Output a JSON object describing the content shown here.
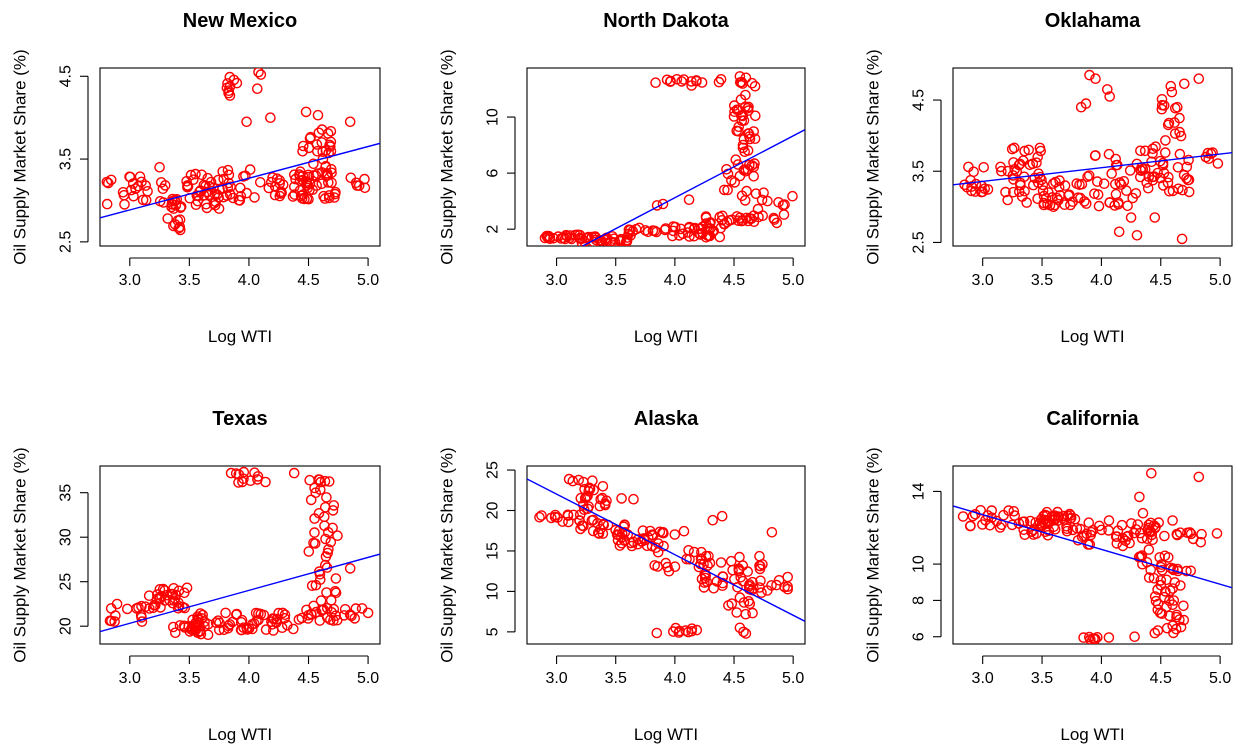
{
  "colors": {
    "points": "#ff0000",
    "fit_line": "#0000ff",
    "axes": "#000000"
  },
  "chart_data": [
    {
      "type": "scatter",
      "title": "New Mexico",
      "xlabel": "Log WTI",
      "ylabel": "Oil Supply Market Share (%)",
      "xlim": [
        2.75,
        5.1
      ],
      "ylim": [
        2.45,
        4.6
      ],
      "xticks": [
        3.0,
        3.5,
        4.0,
        4.5,
        5.0
      ],
      "xtick_labels": [
        "3.0",
        "3.5",
        "4.0",
        "4.5",
        "5.0"
      ],
      "yticks": [
        2.5,
        3.5,
        4.5
      ],
      "ytick_labels": [
        "2.5",
        "3.5",
        "4.5"
      ],
      "fit_line": [
        [
          2.75,
          2.79
        ],
        [
          5.1,
          3.69
        ]
      ],
      "clusters": [
        {
          "x": [
            2.8,
            3.3
          ],
          "y": [
            2.95,
            3.3
          ],
          "n": 25
        },
        {
          "x": [
            3.3,
            3.45
          ],
          "y": [
            2.6,
            3.05
          ],
          "n": 20
        },
        {
          "x": [
            3.45,
            3.75
          ],
          "y": [
            2.9,
            3.35
          ],
          "n": 35
        },
        {
          "x": [
            3.75,
            4.05
          ],
          "y": [
            3.0,
            3.4
          ],
          "n": 22
        },
        {
          "x": [
            3.8,
            3.9
          ],
          "y": [
            4.2,
            4.5
          ],
          "n": 9
        },
        {
          "x": [
            4.05,
            4.3
          ],
          "y": [
            3.05,
            3.35
          ],
          "n": 14
        },
        {
          "x": [
            4.3,
            4.75
          ],
          "y": [
            3.0,
            3.35
          ],
          "n": 40
        },
        {
          "x": [
            4.45,
            4.7
          ],
          "y": [
            3.3,
            3.95
          ],
          "n": 30
        },
        {
          "x": [
            4.75,
            5.0
          ],
          "y": [
            3.15,
            3.3
          ],
          "n": 6
        }
      ],
      "points": [
        [
          4.08,
          4.55
        ],
        [
          4.1,
          4.52
        ],
        [
          4.07,
          4.35
        ],
        [
          3.98,
          3.95
        ],
        [
          4.18,
          4.0
        ],
        [
          4.48,
          4.07
        ],
        [
          4.58,
          4.03
        ],
        [
          3.25,
          3.4
        ],
        [
          4.85,
          3.95
        ]
      ]
    },
    {
      "type": "scatter",
      "title": "North Dakota",
      "xlabel": "Log WTI",
      "ylabel": "Oil Supply Market Share (%)",
      "xlim": [
        2.75,
        5.1
      ],
      "ylim": [
        0.8,
        13.5
      ],
      "xticks": [
        3.0,
        3.5,
        4.0,
        4.5,
        5.0
      ],
      "xtick_labels": [
        "3.0",
        "3.5",
        "4.0",
        "4.5",
        "5.0"
      ],
      "yticks": [
        2,
        6,
        10
      ],
      "ytick_labels": [
        "2",
        "6",
        "10"
      ],
      "fit_line": [
        [
          3.22,
          0.8
        ],
        [
          5.1,
          9.1
        ]
      ],
      "clusters": [
        {
          "x": [
            2.8,
            3.3
          ],
          "y": [
            1.3,
            1.6
          ],
          "n": 25
        },
        {
          "x": [
            3.2,
            3.6
          ],
          "y": [
            1.0,
            1.5
          ],
          "n": 30
        },
        {
          "x": [
            3.6,
            4.4
          ],
          "y": [
            1.4,
            2.2
          ],
          "n": 45
        },
        {
          "x": [
            4.2,
            4.9
          ],
          "y": [
            2.3,
            3.0
          ],
          "n": 30
        },
        {
          "x": [
            4.4,
            4.7
          ],
          "y": [
            4.0,
            7.0
          ],
          "n": 22
        },
        {
          "x": [
            4.5,
            4.7
          ],
          "y": [
            7.5,
            12.5
          ],
          "n": 35
        },
        {
          "x": [
            3.8,
            4.4
          ],
          "y": [
            12.0,
            12.7
          ],
          "n": 14
        },
        {
          "x": [
            4.7,
            5.0
          ],
          "y": [
            3.0,
            4.5
          ],
          "n": 8
        }
      ],
      "points": [
        [
          3.9,
          3.8
        ],
        [
          3.85,
          3.7
        ],
        [
          4.12,
          4.1
        ],
        [
          4.55,
          12.9
        ],
        [
          4.6,
          12.8
        ],
        [
          4.75,
          4.6
        ]
      ]
    },
    {
      "type": "scatter",
      "title": "Oklahama",
      "xlabel": "Log WTI",
      "ylabel": "Oil Supply Market Share (%)",
      "xlim": [
        2.75,
        5.1
      ],
      "ylim": [
        2.45,
        4.95
      ],
      "xticks": [
        3.0,
        3.5,
        4.0,
        4.5,
        5.0
      ],
      "xtick_labels": [
        "3.0",
        "3.5",
        "4.0",
        "4.5",
        "5.0"
      ],
      "yticks": [
        2.5,
        3.5,
        4.5
      ],
      "ytick_labels": [
        "2.5",
        "3.5",
        "4.5"
      ],
      "fit_line": [
        [
          2.75,
          3.31
        ],
        [
          5.1,
          3.76
        ]
      ],
      "clusters": [
        {
          "x": [
            2.8,
            3.2
          ],
          "y": [
            3.2,
            3.6
          ],
          "n": 18
        },
        {
          "x": [
            3.2,
            3.5
          ],
          "y": [
            3.05,
            3.85
          ],
          "n": 35
        },
        {
          "x": [
            3.5,
            3.85
          ],
          "y": [
            3.0,
            3.4
          ],
          "n": 30
        },
        {
          "x": [
            3.85,
            4.4
          ],
          "y": [
            3.0,
            3.75
          ],
          "n": 35
        },
        {
          "x": [
            4.3,
            4.75
          ],
          "y": [
            3.2,
            4.0
          ],
          "n": 40
        },
        {
          "x": [
            4.5,
            4.7
          ],
          "y": [
            4.0,
            4.75
          ],
          "n": 15
        },
        {
          "x": [
            4.75,
            5.0
          ],
          "y": [
            3.6,
            3.8
          ],
          "n": 6
        }
      ],
      "points": [
        [
          3.83,
          4.4
        ],
        [
          3.87,
          4.45
        ],
        [
          3.9,
          4.85
        ],
        [
          3.95,
          4.8
        ],
        [
          4.05,
          4.65
        ],
        [
          4.07,
          4.55
        ],
        [
          4.15,
          2.65
        ],
        [
          4.3,
          2.6
        ],
        [
          4.25,
          2.85
        ],
        [
          4.45,
          2.85
        ],
        [
          4.68,
          2.55
        ],
        [
          4.82,
          4.8
        ]
      ]
    },
    {
      "type": "scatter",
      "title": "Texas",
      "xlabel": "Log WTI",
      "ylabel": "Oil Supply Market Share (%)",
      "xlim": [
        2.75,
        5.1
      ],
      "ylim": [
        18.0,
        38.0
      ],
      "xticks": [
        3.0,
        3.5,
        4.0,
        4.5,
        5.0
      ],
      "xtick_labels": [
        "3.0",
        "3.5",
        "4.0",
        "4.5",
        "5.0"
      ],
      "yticks": [
        20,
        25,
        30,
        35
      ],
      "ytick_labels": [
        "20",
        "25",
        "30",
        "35"
      ],
      "fit_line": [
        [
          2.75,
          19.4
        ],
        [
          5.1,
          28.1
        ]
      ],
      "clusters": [
        {
          "x": [
            2.8,
            3.2
          ],
          "y": [
            20.5,
            22.5
          ],
          "n": 16
        },
        {
          "x": [
            3.15,
            3.5
          ],
          "y": [
            22.0,
            24.5
          ],
          "n": 30
        },
        {
          "x": [
            3.3,
            3.6
          ],
          "y": [
            19.0,
            20.5
          ],
          "n": 12
        },
        {
          "x": [
            3.5,
            4.0
          ],
          "y": [
            19.0,
            21.5
          ],
          "n": 40
        },
        {
          "x": [
            4.0,
            4.4
          ],
          "y": [
            19.5,
            21.5
          ],
          "n": 25
        },
        {
          "x": [
            4.4,
            4.9
          ],
          "y": [
            20.5,
            22.0
          ],
          "n": 25
        },
        {
          "x": [
            4.5,
            4.75
          ],
          "y": [
            22.0,
            36.5
          ],
          "n": 45
        },
        {
          "x": [
            3.8,
            4.2
          ],
          "y": [
            36.0,
            37.5
          ],
          "n": 12
        }
      ],
      "points": [
        [
          4.38,
          37.2
        ],
        [
          4.95,
          22.0
        ],
        [
          5.0,
          21.5
        ],
        [
          4.85,
          26.5
        ]
      ]
    },
    {
      "type": "scatter",
      "title": "Alaska",
      "xlabel": "Log WTI",
      "ylabel": "Oil Supply Market Share (%)",
      "xlim": [
        2.75,
        5.1
      ],
      "ylim": [
        3.5,
        25.5
      ],
      "xticks": [
        3.0,
        3.5,
        4.0,
        4.5,
        5.0
      ],
      "xtick_labels": [
        "3.0",
        "3.5",
        "4.0",
        "4.5",
        "5.0"
      ],
      "yticks": [
        5,
        10,
        15,
        20,
        25
      ],
      "ytick_labels": [
        "5",
        "10",
        "15",
        "20",
        "25"
      ],
      "fit_line": [
        [
          2.75,
          23.9
        ],
        [
          5.1,
          6.3
        ]
      ],
      "clusters": [
        {
          "x": [
            2.8,
            3.2
          ],
          "y": [
            18.5,
            19.5
          ],
          "n": 14
        },
        {
          "x": [
            3.1,
            3.45
          ],
          "y": [
            20.0,
            24.0
          ],
          "n": 25
        },
        {
          "x": [
            3.2,
            3.6
          ],
          "y": [
            17.0,
            19.0
          ],
          "n": 20
        },
        {
          "x": [
            3.5,
            3.8
          ],
          "y": [
            15.5,
            17.5
          ],
          "n": 22
        },
        {
          "x": [
            3.8,
            4.2
          ],
          "y": [
            13.0,
            17.5
          ],
          "n": 22
        },
        {
          "x": [
            4.2,
            4.45
          ],
          "y": [
            10.0,
            15.0
          ],
          "n": 25
        },
        {
          "x": [
            4.45,
            4.75
          ],
          "y": [
            6.0,
            14.5
          ],
          "n": 35
        },
        {
          "x": [
            3.8,
            4.2
          ],
          "y": [
            4.8,
            5.5
          ],
          "n": 10
        },
        {
          "x": [
            4.75,
            5.0
          ],
          "y": [
            10.0,
            13.0
          ],
          "n": 8
        }
      ],
      "points": [
        [
          4.4,
          19.3
        ],
        [
          4.32,
          18.8
        ],
        [
          4.82,
          17.3
        ],
        [
          4.58,
          5.0
        ],
        [
          4.6,
          4.8
        ],
        [
          4.55,
          5.5
        ],
        [
          3.55,
          21.5
        ],
        [
          3.65,
          21.4
        ],
        [
          3.95,
          12.5
        ],
        [
          3.73,
          17.5
        ]
      ]
    },
    {
      "type": "scatter",
      "title": "California",
      "xlabel": "Log WTI",
      "ylabel": "Oil Supply Market Share (%)",
      "xlim": [
        2.75,
        5.1
      ],
      "ylim": [
        5.6,
        15.4
      ],
      "xticks": [
        3.0,
        3.5,
        4.0,
        4.5,
        5.0
      ],
      "xtick_labels": [
        "3.0",
        "3.5",
        "4.0",
        "4.5",
        "5.0"
      ],
      "yticks": [
        6,
        8,
        10,
        14
      ],
      "ytick_labels": [
        "6",
        "8",
        "10",
        "14"
      ],
      "fit_line": [
        [
          2.75,
          13.2
        ],
        [
          5.1,
          8.7
        ]
      ],
      "clusters": [
        {
          "x": [
            2.8,
            3.3
          ],
          "y": [
            12.0,
            13.0
          ],
          "n": 20
        },
        {
          "x": [
            3.3,
            3.55
          ],
          "y": [
            11.5,
            12.5
          ],
          "n": 20
        },
        {
          "x": [
            3.5,
            3.8
          ],
          "y": [
            11.8,
            12.9
          ],
          "n": 35
        },
        {
          "x": [
            3.8,
            4.25
          ],
          "y": [
            11.0,
            12.5
          ],
          "n": 25
        },
        {
          "x": [
            4.25,
            4.55
          ],
          "y": [
            11.3,
            12.3
          ],
          "n": 20
        },
        {
          "x": [
            4.3,
            4.6
          ],
          "y": [
            9.0,
            10.5
          ],
          "n": 18
        },
        {
          "x": [
            4.45,
            4.7
          ],
          "y": [
            6.2,
            9.0
          ],
          "n": 30
        },
        {
          "x": [
            4.6,
            5.0
          ],
          "y": [
            11.2,
            11.8
          ],
          "n": 10
        },
        {
          "x": [
            3.85,
            4.15
          ],
          "y": [
            5.8,
            6.0
          ],
          "n": 8
        },
        {
          "x": [
            4.6,
            4.8
          ],
          "y": [
            9.4,
            9.8
          ],
          "n": 6
        }
      ],
      "points": [
        [
          4.42,
          15.0
        ],
        [
          4.82,
          14.8
        ],
        [
          4.32,
          13.7
        ],
        [
          4.35,
          12.8
        ],
        [
          4.6,
          12.4
        ],
        [
          4.4,
          10.8
        ],
        [
          4.28,
          6.0
        ],
        [
          4.45,
          6.2
        ],
        [
          4.18,
          11.0
        ]
      ]
    }
  ]
}
